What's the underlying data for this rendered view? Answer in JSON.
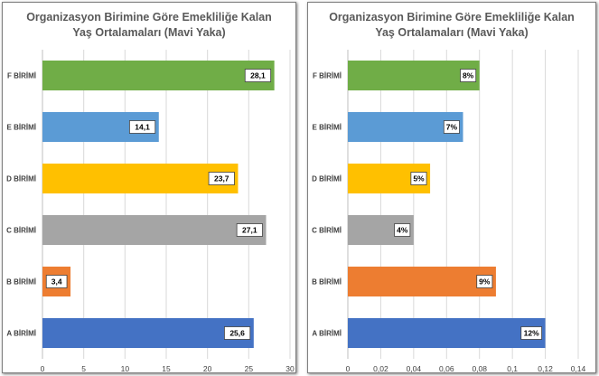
{
  "chart_data": [
    {
      "type": "bar",
      "orientation": "horizontal",
      "title": "Organizasyon Birimine Göre Emekliliğe Kalan Yaş Ortalamaları (Mavi Yaka)",
      "categories": [
        "F BİRİMİ",
        "E BİRİMİ",
        "D BİRİMİ",
        "C BİRİMİ",
        "B BİRİMİ",
        "A BİRİMİ"
      ],
      "values": [
        28.1,
        14.1,
        23.7,
        27.1,
        3.4,
        25.6
      ],
      "value_labels": [
        "28,1",
        "14,1",
        "23,7",
        "27,1",
        "3,4",
        "25,6"
      ],
      "bar_colors": [
        "#70ad47",
        "#5b9bd5",
        "#ffc000",
        "#a5a5a5",
        "#ed7d31",
        "#4472c4"
      ],
      "xlim": [
        0,
        30
      ],
      "x_ticks": [
        0,
        5,
        10,
        15,
        20,
        25,
        30
      ],
      "x_tick_labels": [
        "0",
        "5",
        "10",
        "15",
        "20",
        "25",
        "30"
      ],
      "grid": true,
      "legend": "none"
    },
    {
      "type": "bar",
      "orientation": "horizontal",
      "title": "Organizasyon Birimine  Göre Emekliliğe Kalan Yaş Ortalamaları (Mavi Yaka)",
      "categories": [
        "F BİRİMİ",
        "E BİRİMİ",
        "D BİRİMİ",
        "C BİRİMİ",
        "B BİRİMİ",
        "A BİRİMİ"
      ],
      "values": [
        0.08,
        0.07,
        0.05,
        0.04,
        0.09,
        0.12
      ],
      "value_labels": [
        "8%",
        "7%",
        "5%",
        "4%",
        "9%",
        "12%"
      ],
      "bar_colors": [
        "#70ad47",
        "#5b9bd5",
        "#ffc000",
        "#a5a5a5",
        "#ed7d31",
        "#4472c4"
      ],
      "xlim": [
        0,
        0.14
      ],
      "x_ticks": [
        0,
        0.02,
        0.04,
        0.06,
        0.08,
        0.1,
        0.12,
        0.14
      ],
      "x_tick_labels": [
        "0",
        "0,02",
        "0,04",
        "0,06",
        "0,08",
        "0,1",
        "0,12",
        "0,14"
      ],
      "grid": true,
      "legend": "none"
    }
  ]
}
